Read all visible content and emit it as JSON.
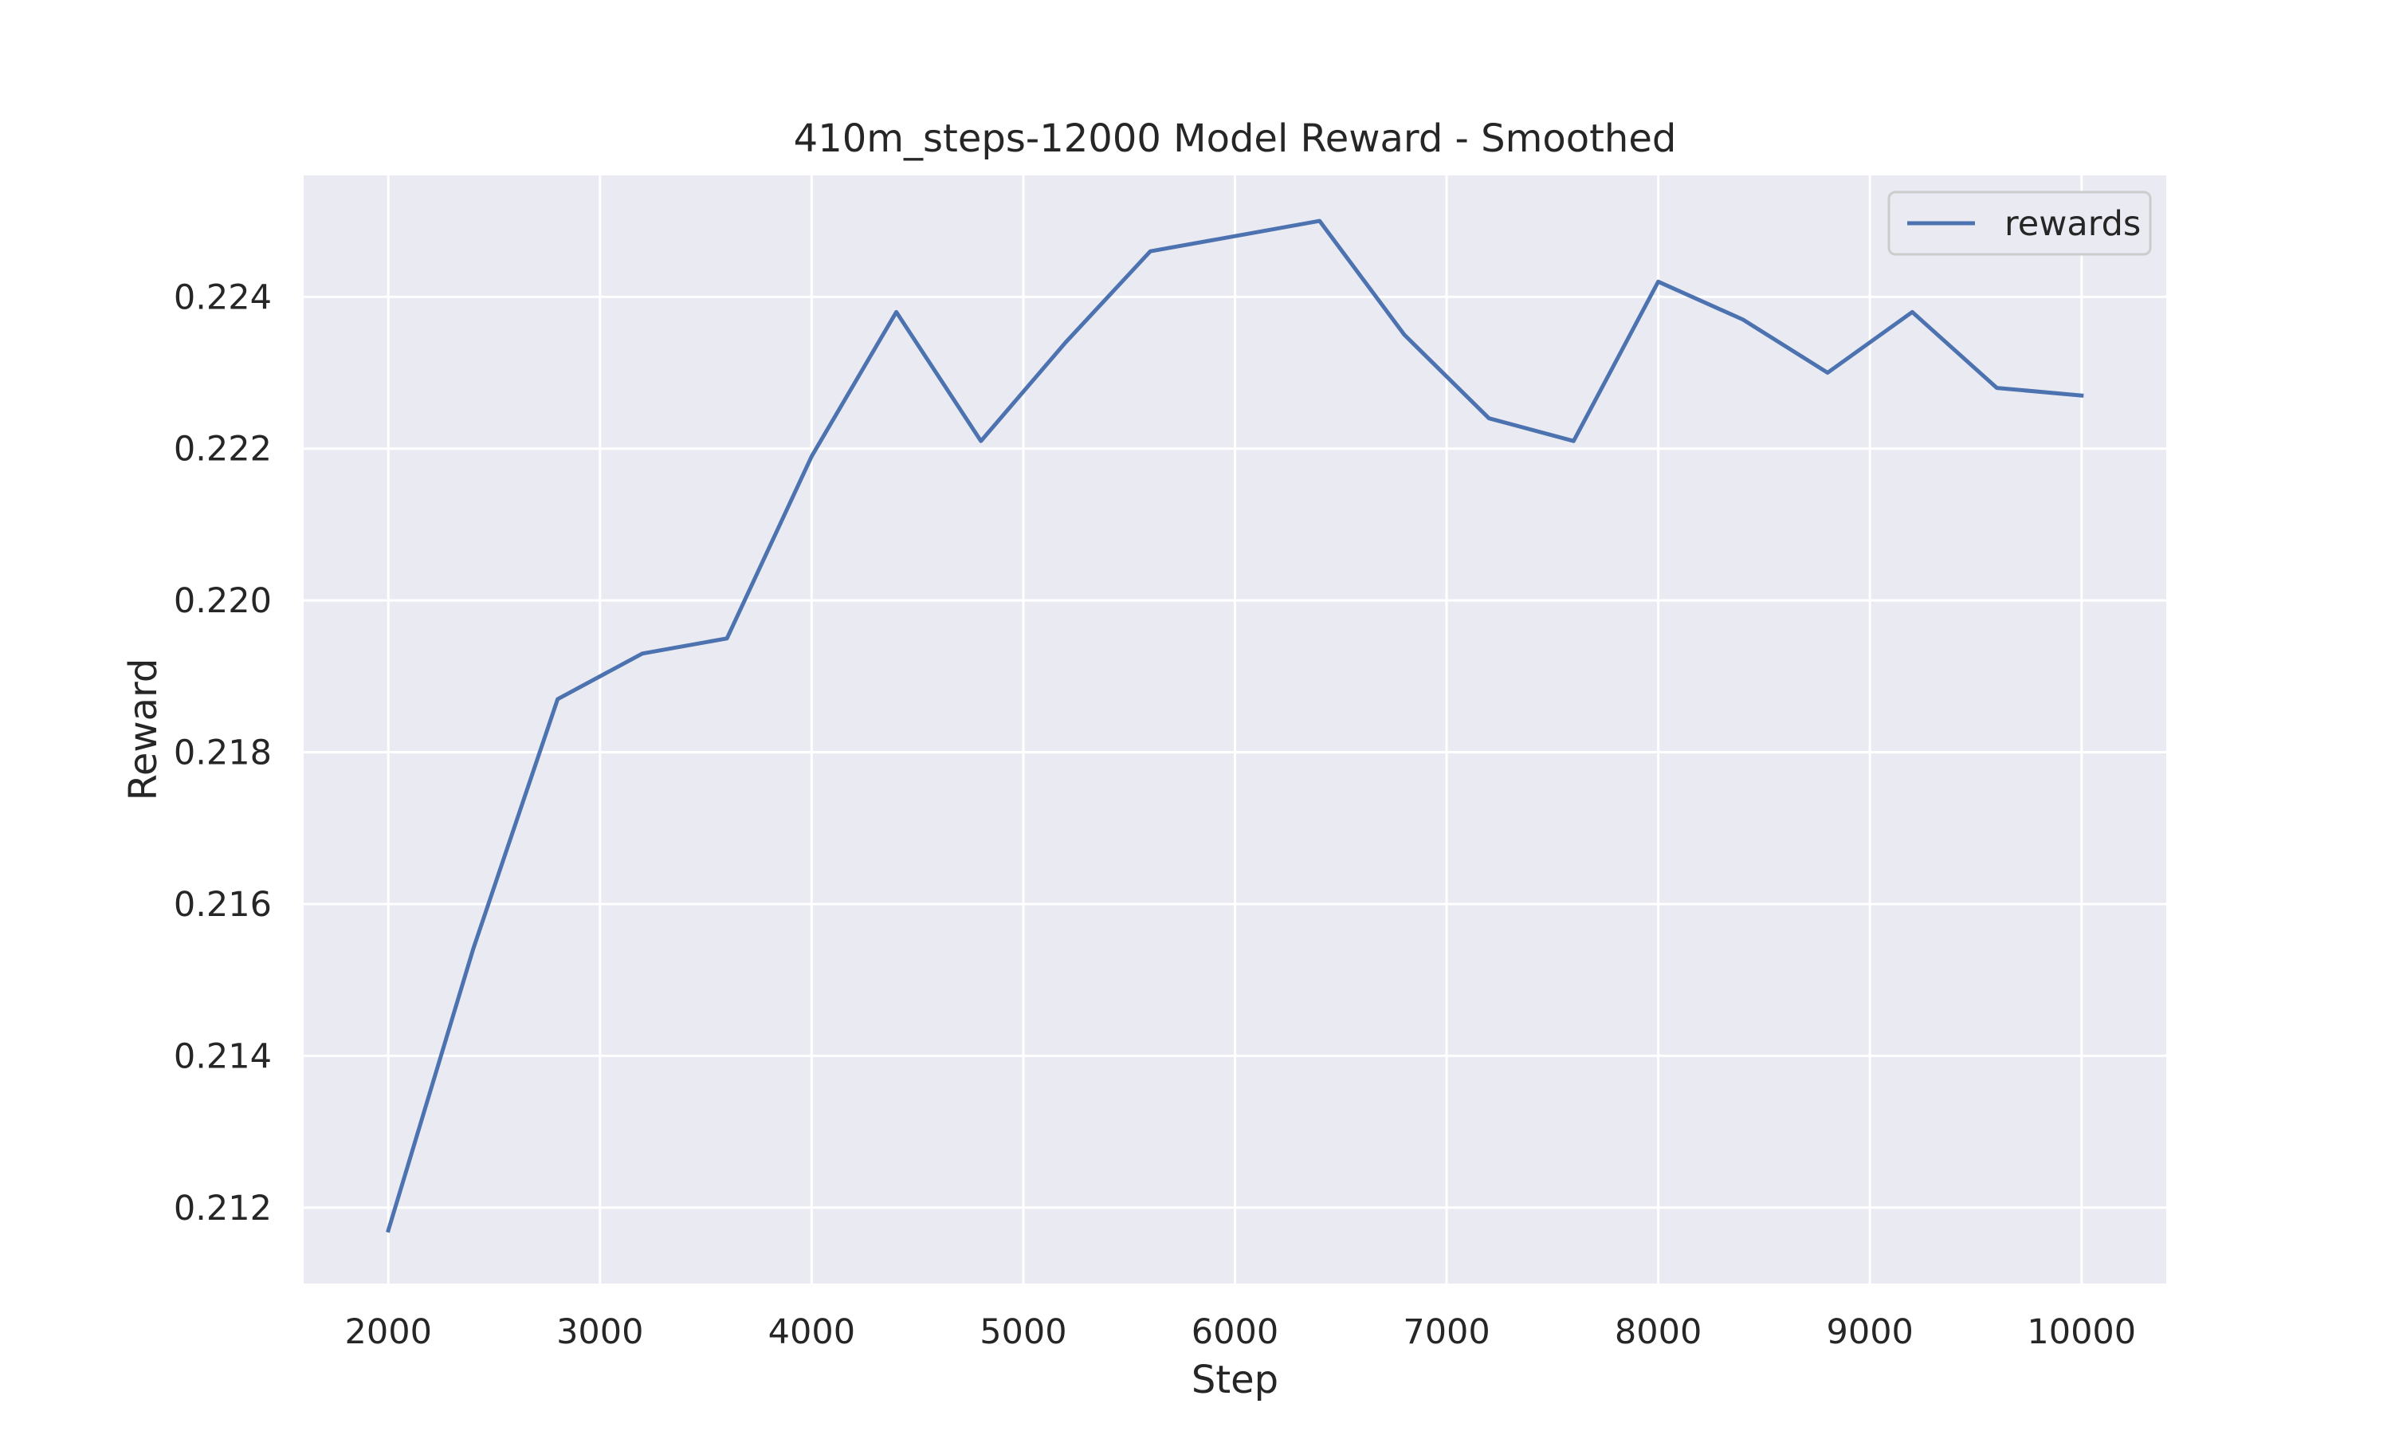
{
  "chart_data": {
    "type": "line",
    "title": "410m_steps-12000 Model Reward - Smoothed",
    "xlabel": "Step",
    "ylabel": "Reward",
    "xlim": [
      1600,
      10400
    ],
    "ylim": [
      0.211,
      0.2256
    ],
    "x_ticks": [
      2000,
      3000,
      4000,
      5000,
      6000,
      7000,
      8000,
      9000,
      10000
    ],
    "x_tick_labels": [
      "2000",
      "3000",
      "4000",
      "5000",
      "6000",
      "7000",
      "8000",
      "9000",
      "10000"
    ],
    "y_ticks": [
      0.212,
      0.214,
      0.216,
      0.218,
      0.22,
      0.222,
      0.224
    ],
    "y_tick_labels": [
      "0.212",
      "0.214",
      "0.216",
      "0.218",
      "0.220",
      "0.222",
      "0.224"
    ],
    "grid": true,
    "legend_position": "top-right",
    "colors": {
      "plot_bg": "#eaeaf2",
      "grid": "#ffffff",
      "line": "#4c72b0",
      "legend_border": "#cccccc"
    },
    "series": [
      {
        "name": "rewards",
        "x": [
          2000,
          2400,
          2800,
          3200,
          3600,
          4000,
          4400,
          4800,
          5200,
          5600,
          6000,
          6400,
          6800,
          7200,
          7600,
          8000,
          8400,
          8800,
          9200,
          9600,
          10000
        ],
        "y": [
          0.2117,
          0.2154,
          0.2187,
          0.2193,
          0.2195,
          0.2219,
          0.2238,
          0.2221,
          0.2234,
          0.2246,
          0.2248,
          0.225,
          0.2235,
          0.2224,
          0.2221,
          0.2242,
          0.2237,
          0.223,
          0.2238,
          0.2228,
          0.2227
        ]
      }
    ]
  }
}
